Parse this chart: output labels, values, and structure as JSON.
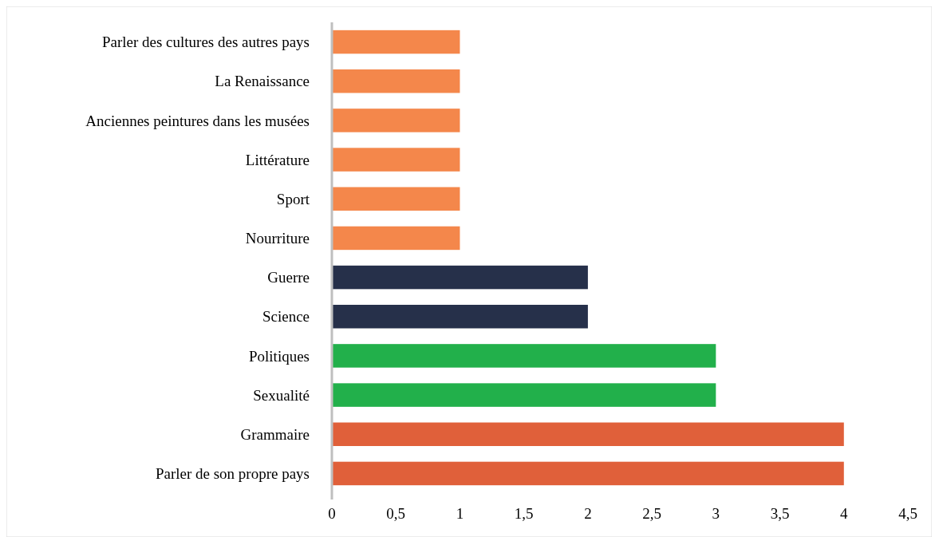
{
  "chart_data": {
    "type": "bar",
    "orientation": "horizontal",
    "categories": [
      "Parler des cultures des autres pays",
      "La Renaissance",
      "Anciennes peintures dans les musées",
      "Littérature",
      "Sport",
      "Nourriture",
      "Guerre",
      "Science",
      "Politiques",
      "Sexualité",
      "Grammaire",
      "Parler de son propre pays"
    ],
    "values": [
      1,
      1,
      1,
      1,
      1,
      1,
      2,
      2,
      3,
      3,
      4,
      4
    ],
    "colors": [
      "#f4874b",
      "#f4874b",
      "#f4874b",
      "#f4874b",
      "#f4874b",
      "#f4874b",
      "#26304a",
      "#26304a",
      "#22b04b",
      "#22b04b",
      "#e0603a",
      "#e0603a"
    ],
    "xlim": [
      0,
      4.5
    ],
    "xticks": [
      0,
      {
        "value": 0.5,
        "label": "0,5"
      },
      1,
      {
        "value": 1.5,
        "label": "1,5"
      },
      2,
      {
        "value": 2.5,
        "label": "2,5"
      },
      3,
      {
        "value": 3.5,
        "label": "3,5"
      },
      4,
      {
        "value": 4.5,
        "label": "4,5"
      }
    ],
    "grid": false
  }
}
